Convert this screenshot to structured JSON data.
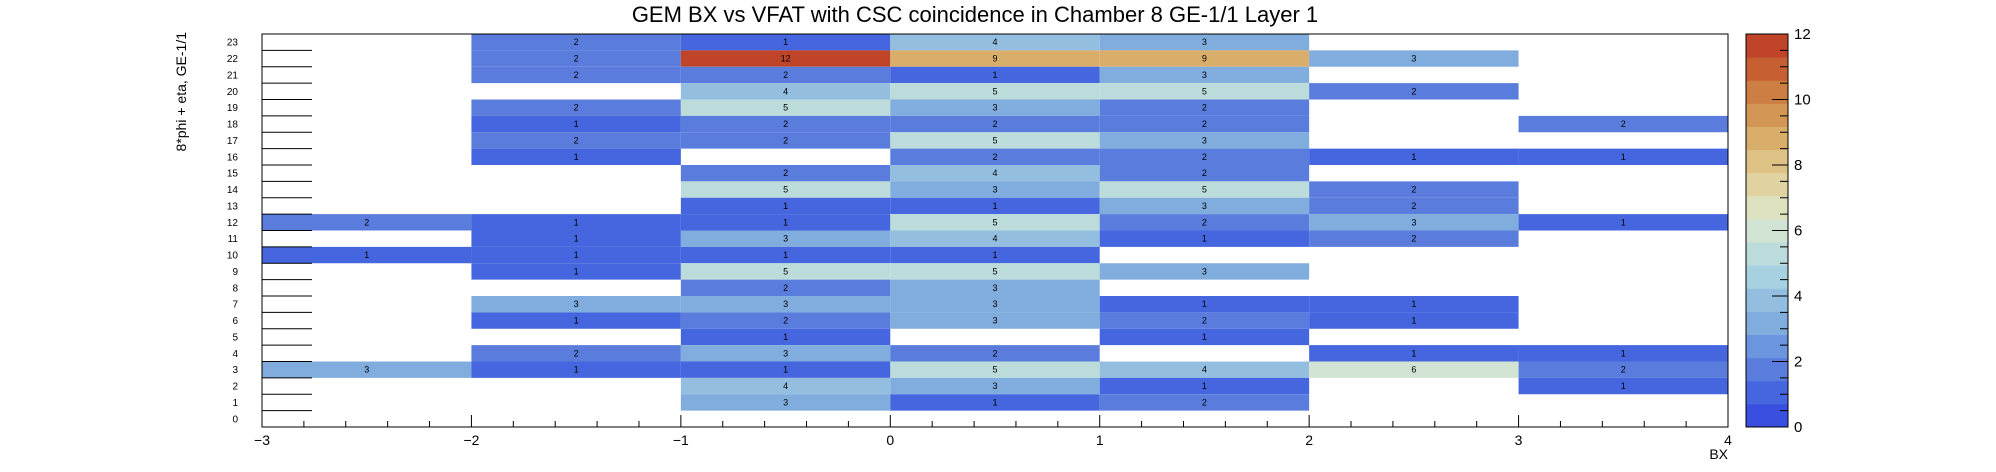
{
  "chart_data": {
    "type": "heatmap",
    "title": "GEM BX vs VFAT with CSC coincidence in Chamber 8 GE-1/1 Layer 1",
    "xlabel": "BX",
    "ylabel": "8*phi + eta, GE-1/1",
    "xlim": [
      -3,
      4
    ],
    "ylim": [
      0,
      24
    ],
    "zlim": [
      0,
      12
    ],
    "x_bin_edges": [
      -3,
      -2,
      -1,
      0,
      1,
      2,
      3,
      4
    ],
    "y_bins": [
      0,
      1,
      2,
      3,
      4,
      5,
      6,
      7,
      8,
      9,
      10,
      11,
      12,
      13,
      14,
      15,
      16,
      17,
      18,
      19,
      20,
      21,
      22,
      23
    ],
    "x_ticks": [
      "−3",
      "−2",
      "−1",
      "0",
      "1",
      "2",
      "3",
      "4"
    ],
    "y_ticks": [
      "0",
      "1",
      "2",
      "3",
      "4",
      "5",
      "6",
      "7",
      "8",
      "9",
      "10",
      "11",
      "12",
      "13",
      "14",
      "15",
      "16",
      "17",
      "18",
      "19",
      "20",
      "21",
      "22",
      "23"
    ],
    "z_ticks": [
      "0",
      "2",
      "4",
      "6",
      "8",
      "10",
      "12"
    ],
    "colormap": [
      "#3a4fe0",
      "#4566de",
      "#5a7ddd",
      "#6b95de",
      "#80acde",
      "#93bee0",
      "#a7d1e0",
      "#bcdcdc",
      "#d1e4d4",
      "#dde1be",
      "#e0d3a1",
      "#dec285",
      "#d9ae6a",
      "#d49654",
      "#cd7e42",
      "#c65f32",
      "#bf4428"
    ],
    "cells": [
      {
        "x": 0,
        "y": 23,
        "value": 2
      },
      {
        "x": 1,
        "y": 23,
        "value": 1
      },
      {
        "x": 2,
        "y": 23,
        "value": 4
      },
      {
        "x": 3,
        "y": 23,
        "value": 3
      },
      {
        "x": 0,
        "y": 22,
        "value": 2
      },
      {
        "x": 1,
        "y": 22,
        "value": 12
      },
      {
        "x": 2,
        "y": 22,
        "value": 9
      },
      {
        "x": 3,
        "y": 22,
        "value": 9
      },
      {
        "x": 4,
        "y": 22,
        "value": 3
      },
      {
        "x": 0,
        "y": 21,
        "value": 2
      },
      {
        "x": 1,
        "y": 21,
        "value": 2
      },
      {
        "x": 2,
        "y": 21,
        "value": 1
      },
      {
        "x": 3,
        "y": 21,
        "value": 3
      },
      {
        "x": 1,
        "y": 20,
        "value": 4
      },
      {
        "x": 2,
        "y": 20,
        "value": 5
      },
      {
        "x": 3,
        "y": 20,
        "value": 5
      },
      {
        "x": 4,
        "y": 20,
        "value": 2
      },
      {
        "x": 0,
        "y": 19,
        "value": 2
      },
      {
        "x": 1,
        "y": 19,
        "value": 5
      },
      {
        "x": 2,
        "y": 19,
        "value": 3
      },
      {
        "x": 3,
        "y": 19,
        "value": 2
      },
      {
        "x": 0,
        "y": 18,
        "value": 1
      },
      {
        "x": 1,
        "y": 18,
        "value": 2
      },
      {
        "x": 2,
        "y": 18,
        "value": 2
      },
      {
        "x": 3,
        "y": 18,
        "value": 2
      },
      {
        "x": 5,
        "y": 18,
        "value": 2
      },
      {
        "x": 0,
        "y": 17,
        "value": 2
      },
      {
        "x": 1,
        "y": 17,
        "value": 2
      },
      {
        "x": 2,
        "y": 17,
        "value": 5
      },
      {
        "x": 3,
        "y": 17,
        "value": 3
      },
      {
        "x": 0,
        "y": 16,
        "value": 1
      },
      {
        "x": 2,
        "y": 16,
        "value": 2
      },
      {
        "x": 3,
        "y": 16,
        "value": 2
      },
      {
        "x": 4,
        "y": 16,
        "value": 1
      },
      {
        "x": 5,
        "y": 16,
        "value": 1
      },
      {
        "x": 1,
        "y": 15,
        "value": 2
      },
      {
        "x": 2,
        "y": 15,
        "value": 4
      },
      {
        "x": 3,
        "y": 15,
        "value": 2
      },
      {
        "x": 1,
        "y": 14,
        "value": 5
      },
      {
        "x": 2,
        "y": 14,
        "value": 3
      },
      {
        "x": 3,
        "y": 14,
        "value": 5
      },
      {
        "x": 4,
        "y": 14,
        "value": 2
      },
      {
        "x": 1,
        "y": 13,
        "value": 1
      },
      {
        "x": 2,
        "y": 13,
        "value": 1
      },
      {
        "x": 3,
        "y": 13,
        "value": 3
      },
      {
        "x": 4,
        "y": 13,
        "value": 2
      },
      {
        "x": -1,
        "y": 12,
        "value": 2
      },
      {
        "x": 0,
        "y": 12,
        "value": 1
      },
      {
        "x": 1,
        "y": 12,
        "value": 1
      },
      {
        "x": 2,
        "y": 12,
        "value": 5
      },
      {
        "x": 3,
        "y": 12,
        "value": 2
      },
      {
        "x": 4,
        "y": 12,
        "value": 3
      },
      {
        "x": 5,
        "y": 12,
        "value": 1
      },
      {
        "x": 0,
        "y": 11,
        "value": 1
      },
      {
        "x": 1,
        "y": 11,
        "value": 3
      },
      {
        "x": 2,
        "y": 11,
        "value": 4
      },
      {
        "x": 3,
        "y": 11,
        "value": 1
      },
      {
        "x": 4,
        "y": 11,
        "value": 2
      },
      {
        "x": -1,
        "y": 10,
        "value": 1
      },
      {
        "x": 0,
        "y": 10,
        "value": 1
      },
      {
        "x": 1,
        "y": 10,
        "value": 1
      },
      {
        "x": 2,
        "y": 10,
        "value": 1
      },
      {
        "x": 0,
        "y": 9,
        "value": 1
      },
      {
        "x": 1,
        "y": 9,
        "value": 5
      },
      {
        "x": 2,
        "y": 9,
        "value": 5
      },
      {
        "x": 3,
        "y": 9,
        "value": 3
      },
      {
        "x": 1,
        "y": 8,
        "value": 2
      },
      {
        "x": 2,
        "y": 8,
        "value": 3
      },
      {
        "x": 0,
        "y": 7,
        "value": 3
      },
      {
        "x": 1,
        "y": 7,
        "value": 3
      },
      {
        "x": 2,
        "y": 7,
        "value": 3
      },
      {
        "x": 3,
        "y": 7,
        "value": 1
      },
      {
        "x": 4,
        "y": 7,
        "value": 1
      },
      {
        "x": 0,
        "y": 6,
        "value": 1
      },
      {
        "x": 1,
        "y": 6,
        "value": 2
      },
      {
        "x": 2,
        "y": 6,
        "value": 3
      },
      {
        "x": 3,
        "y": 6,
        "value": 2
      },
      {
        "x": 4,
        "y": 6,
        "value": 1
      },
      {
        "x": 1,
        "y": 5,
        "value": 1
      },
      {
        "x": 3,
        "y": 5,
        "value": 1
      },
      {
        "x": 0,
        "y": 4,
        "value": 2
      },
      {
        "x": 1,
        "y": 4,
        "value": 3
      },
      {
        "x": 2,
        "y": 4,
        "value": 2
      },
      {
        "x": 4,
        "y": 4,
        "value": 1
      },
      {
        "x": 5,
        "y": 4,
        "value": 1
      },
      {
        "x": -1,
        "y": 3,
        "value": 3
      },
      {
        "x": 0,
        "y": 3,
        "value": 1
      },
      {
        "x": 1,
        "y": 3,
        "value": 1
      },
      {
        "x": 2,
        "y": 3,
        "value": 5
      },
      {
        "x": 3,
        "y": 3,
        "value": 4
      },
      {
        "x": 4,
        "y": 3,
        "value": 6
      },
      {
        "x": 5,
        "y": 3,
        "value": 2
      },
      {
        "x": 1,
        "y": 2,
        "value": 4
      },
      {
        "x": 2,
        "y": 2,
        "value": 3
      },
      {
        "x": 3,
        "y": 2,
        "value": 1
      },
      {
        "x": 5,
        "y": 2,
        "value": 1
      },
      {
        "x": 1,
        "y": 1,
        "value": 3
      },
      {
        "x": 2,
        "y": 1,
        "value": 1
      },
      {
        "x": 3,
        "y": 1,
        "value": 2
      }
    ]
  }
}
